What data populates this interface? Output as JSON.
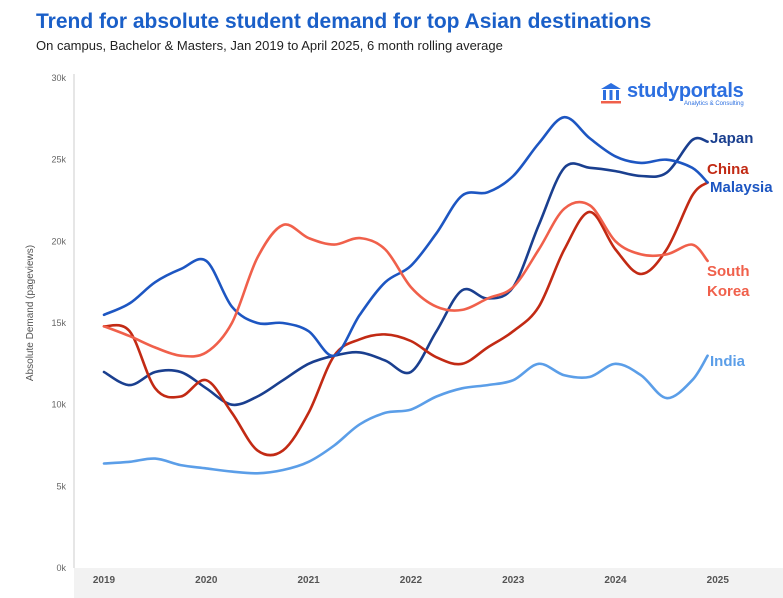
{
  "title": "Trend for absolute student demand for top Asian destinations",
  "subtitle": "On campus, Bachelor & Masters, Jan 2019 to April 2025, 6 month rolling average",
  "logo": {
    "name": "studyportals",
    "tagline": "Analytics & Consulting",
    "icon": "building-columns-icon"
  },
  "chart_data": {
    "type": "line",
    "title": "Trend for absolute student demand for top Asian destinations",
    "subtitle": "On campus, Bachelor & Masters, Jan 2019 to April 2025, 6 month rolling average",
    "xlabel": "",
    "ylabel": "Absolute Demand (pageviews)",
    "ylim": [
      0,
      30000
    ],
    "yticks": [
      0,
      5000,
      10000,
      15000,
      20000,
      25000,
      30000
    ],
    "ytick_labels": [
      "0k",
      "5k",
      "10k",
      "15k",
      "20k",
      "25k",
      "30k"
    ],
    "xlim": [
      2019.0,
      2025.5
    ],
    "xticks": [
      "2019",
      "2020",
      "2021",
      "2022",
      "2023",
      "2024",
      "2025"
    ],
    "grid": false,
    "legend": "inline-right",
    "series": [
      {
        "name": "Japan",
        "color": "#1a3f8f",
        "x": [
          2019.0,
          2019.25,
          2019.5,
          2019.75,
          2020.0,
          2020.25,
          2020.5,
          2020.75,
          2021.0,
          2021.25,
          2021.5,
          2021.75,
          2022.0,
          2022.25,
          2022.5,
          2022.75,
          2023.0,
          2023.25,
          2023.5,
          2023.75,
          2024.0,
          2024.25,
          2024.5,
          2024.75,
          2024.9
        ],
        "values": [
          12000,
          11200,
          12000,
          12000,
          11000,
          10000,
          10500,
          11500,
          12500,
          13000,
          13200,
          12700,
          12000,
          14500,
          17000,
          16500,
          17200,
          21000,
          24500,
          24500,
          24300,
          24000,
          24200,
          26200,
          26100
        ]
      },
      {
        "name": "China",
        "color": "#c22a14",
        "x": [
          2019.0,
          2019.25,
          2019.5,
          2019.75,
          2020.0,
          2020.25,
          2020.5,
          2020.75,
          2021.0,
          2021.25,
          2021.5,
          2021.75,
          2022.0,
          2022.25,
          2022.5,
          2022.75,
          2023.0,
          2023.25,
          2023.5,
          2023.75,
          2024.0,
          2024.25,
          2024.5,
          2024.75,
          2024.9
        ],
        "values": [
          14800,
          14500,
          11000,
          10500,
          11500,
          9500,
          7200,
          7200,
          9500,
          13000,
          14000,
          14300,
          13900,
          12900,
          12500,
          13500,
          14500,
          16000,
          19500,
          21800,
          19500,
          18000,
          19500,
          22800,
          23600
        ]
      },
      {
        "name": "Malaysia",
        "color": "#1d56c2",
        "x": [
          2019.0,
          2019.25,
          2019.5,
          2019.75,
          2020.0,
          2020.25,
          2020.5,
          2020.75,
          2021.0,
          2021.25,
          2021.5,
          2021.75,
          2022.0,
          2022.25,
          2022.5,
          2022.75,
          2023.0,
          2023.25,
          2023.5,
          2023.75,
          2024.0,
          2024.25,
          2024.5,
          2024.75,
          2024.9
        ],
        "values": [
          15500,
          16200,
          17500,
          18300,
          18800,
          16000,
          15000,
          15000,
          14500,
          13000,
          15500,
          17500,
          18500,
          20500,
          22800,
          23000,
          24000,
          26000,
          27600,
          26300,
          25200,
          24800,
          25000,
          24500,
          23600
        ]
      },
      {
        "name": "South Korea",
        "color": "#f0604b",
        "x": [
          2019.0,
          2019.25,
          2019.5,
          2019.75,
          2020.0,
          2020.25,
          2020.5,
          2020.75,
          2021.0,
          2021.25,
          2021.5,
          2021.75,
          2022.0,
          2022.25,
          2022.5,
          2022.75,
          2023.0,
          2023.25,
          2023.5,
          2023.75,
          2024.0,
          2024.25,
          2024.5,
          2024.75,
          2024.9
        ],
        "values": [
          14800,
          14200,
          13500,
          13000,
          13200,
          15000,
          19000,
          21000,
          20200,
          19800,
          20200,
          19500,
          17200,
          16000,
          15800,
          16500,
          17200,
          19500,
          22000,
          22200,
          20000,
          19200,
          19200,
          19800,
          18800
        ]
      },
      {
        "name": "India",
        "color": "#5b9ee8",
        "x": [
          2019.0,
          2019.25,
          2019.5,
          2019.75,
          2020.0,
          2020.25,
          2020.5,
          2020.75,
          2021.0,
          2021.25,
          2021.5,
          2021.75,
          2022.0,
          2022.25,
          2022.5,
          2022.75,
          2023.0,
          2023.25,
          2023.5,
          2023.75,
          2024.0,
          2024.25,
          2024.5,
          2024.75,
          2024.9
        ],
        "values": [
          6400,
          6500,
          6700,
          6300,
          6100,
          5900,
          5800,
          6000,
          6500,
          7500,
          8800,
          9500,
          9700,
          10500,
          11000,
          11200,
          11500,
          12500,
          11800,
          11700,
          12500,
          11800,
          10400,
          11500,
          13000
        ]
      }
    ]
  }
}
